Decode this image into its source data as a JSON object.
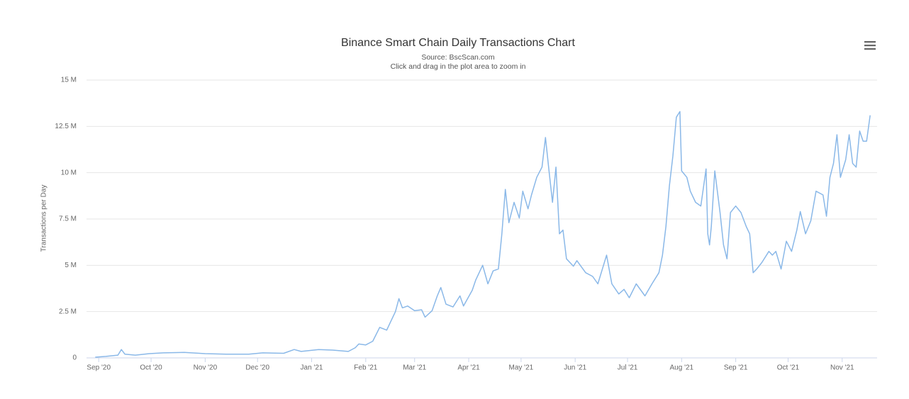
{
  "chart_data": {
    "type": "line",
    "title": "Binance Smart Chain Daily Transactions Chart",
    "subtitle": [
      "Source: BscScan.com",
      "Click and drag in the plot area to zoom in"
    ],
    "y_label": "Transactions per Day",
    "xlim": [
      -7,
      446
    ],
    "xticks": [
      {
        "value": 0,
        "label": "Sep '20"
      },
      {
        "value": 30,
        "label": "Oct '20"
      },
      {
        "value": 61,
        "label": "Nov '20"
      },
      {
        "value": 91,
        "label": "Dec '20"
      },
      {
        "value": 122,
        "label": "Jan '21"
      },
      {
        "value": 153,
        "label": "Feb '21"
      },
      {
        "value": 181,
        "label": "Mar '21"
      },
      {
        "value": 212,
        "label": "Apr '21"
      },
      {
        "value": 242,
        "label": "May '21"
      },
      {
        "value": 273,
        "label": "Jun '21"
      },
      {
        "value": 303,
        "label": "Jul '21"
      },
      {
        "value": 334,
        "label": "Aug '21"
      },
      {
        "value": 365,
        "label": "Sep '21"
      },
      {
        "value": 395,
        "label": "Oct '21"
      },
      {
        "value": 426,
        "label": "Nov '21"
      }
    ],
    "ylim": [
      0,
      15000000
    ],
    "yticks": [
      0,
      {
        "value": 2500000,
        "label": "2.5 M"
      },
      {
        "value": 5000000,
        "label": "5 M"
      },
      {
        "value": 7500000,
        "label": "7.5 M"
      },
      {
        "value": 10000000,
        "label": "10 M"
      },
      {
        "value": 12500000,
        "label": "12.5 M"
      },
      {
        "value": 15000000,
        "label": "15 M"
      }
    ],
    "grid": true,
    "x": [
      -2,
      4,
      11,
      13,
      15,
      21,
      29,
      37,
      49,
      61,
      73,
      86,
      94,
      106,
      112,
      116,
      126,
      134,
      143,
      147,
      149,
      153,
      157,
      161,
      165,
      167,
      170,
      172,
      174,
      177,
      181,
      185,
      187,
      191,
      194,
      196,
      199,
      203,
      207,
      209,
      214,
      216,
      220,
      223,
      226,
      229,
      231,
      233,
      235,
      238,
      241,
      243,
      246,
      248,
      251,
      254,
      256,
      258,
      260,
      262,
      264,
      266,
      268,
      272,
      274,
      279,
      283,
      286,
      291,
      294,
      298,
      301,
      304,
      308,
      313,
      317,
      321,
      323,
      325,
      327,
      329,
      331,
      333,
      334,
      337,
      339,
      342,
      345,
      348,
      349,
      350,
      351,
      353,
      356,
      358,
      360,
      362,
      365,
      368,
      371,
      373,
      375,
      377,
      380,
      384,
      386,
      388,
      391,
      394,
      397,
      400,
      402,
      405,
      408,
      411,
      415,
      417,
      419,
      421,
      423,
      425,
      428,
      430,
      432,
      434,
      436,
      438,
      440,
      442
    ],
    "series": [
      {
        "name": "Transactions per Day",
        "color": "#8ab8e8",
        "values": [
          40000,
          80000,
          150000,
          450000,
          200000,
          150000,
          230000,
          270000,
          300000,
          230000,
          200000,
          200000,
          270000,
          250000,
          450000,
          350000,
          450000,
          420000,
          350000,
          550000,
          750000,
          700000,
          900000,
          1650000,
          1500000,
          1900000,
          2500000,
          3200000,
          2700000,
          2800000,
          2550000,
          2600000,
          2200000,
          2550000,
          3350000,
          3800000,
          2900000,
          2750000,
          3350000,
          2800000,
          3650000,
          4200000,
          5000000,
          4000000,
          4700000,
          4800000,
          6700000,
          9100000,
          7300000,
          8400000,
          7550000,
          9000000,
          8050000,
          8800000,
          9750000,
          10300000,
          11900000,
          10100000,
          8400000,
          10300000,
          6700000,
          6900000,
          5350000,
          4950000,
          5250000,
          4600000,
          4400000,
          4000000,
          5550000,
          4000000,
          3450000,
          3700000,
          3250000,
          4000000,
          3350000,
          4000000,
          4600000,
          5550000,
          7100000,
          9300000,
          10900000,
          13000000,
          13300000,
          10100000,
          9750000,
          9000000,
          8400000,
          8200000,
          10200000,
          6700000,
          6100000,
          7100000,
          10100000,
          7850000,
          6100000,
          5350000,
          7850000,
          8200000,
          7850000,
          7100000,
          6700000,
          4600000,
          4800000,
          5150000,
          5750000,
          5550000,
          5750000,
          4800000,
          6300000,
          5750000,
          6900000,
          7900000,
          6700000,
          7400000,
          9000000,
          8800000,
          7650000,
          9750000,
          10500000,
          12050000,
          9750000,
          10700000,
          12050000,
          10500000,
          10300000,
          12250000,
          11700000,
          11700000,
          13100000
        ]
      }
    ]
  }
}
